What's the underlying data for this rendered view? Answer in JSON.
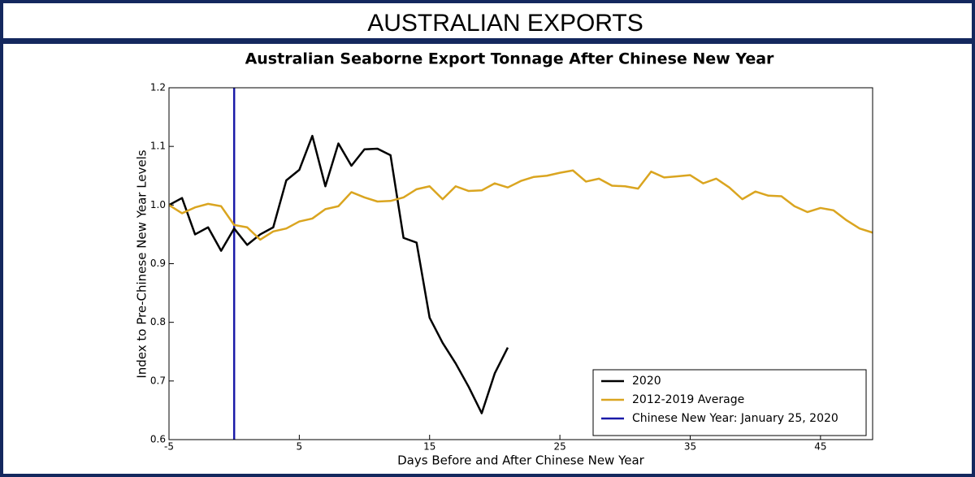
{
  "header": {
    "title": "AUSTRALIAN EXPORTS"
  },
  "chart_data": {
    "type": "line",
    "title": "Australian Seaborne Export Tonnage After Chinese New Year",
    "x_label": "Days Before and After Chinese New Year",
    "y_label": "Index to Pre-Chinese New Year Levels",
    "xlim": [
      -5,
      49
    ],
    "ylim": [
      0.6,
      1.2
    ],
    "xticks": [
      -5,
      5,
      15,
      25,
      35,
      45
    ],
    "yticks": [
      0.6,
      0.7,
      0.8,
      0.9,
      {
        "value": 1,
        "label": "1.0"
      },
      1.1,
      1.2
    ],
    "legend": "lower right",
    "series": [
      {
        "name": "2020",
        "color": "#000000",
        "x": [
          -5,
          -4,
          -3,
          -2,
          -1,
          0,
          1,
          2,
          3,
          4,
          5,
          6,
          7,
          8,
          9,
          10,
          11,
          12,
          13,
          14,
          15,
          16,
          17,
          18,
          19,
          20,
          21
        ],
        "values": [
          1.0,
          1.012,
          0.95,
          0.962,
          0.922,
          0.96,
          0.932,
          0.95,
          0.962,
          1.042,
          1.06,
          1.118,
          1.032,
          1.105,
          1.067,
          1.095,
          1.096,
          1.085,
          0.944,
          0.936,
          0.808,
          0.765,
          0.73,
          0.69,
          0.645,
          0.713,
          0.757
        ]
      },
      {
        "name": "2012-2019 Average",
        "color": "#daa520",
        "x": [
          -5,
          -4,
          -3,
          -2,
          -1,
          0,
          1,
          2,
          3,
          4,
          5,
          6,
          7,
          8,
          9,
          10,
          11,
          12,
          13,
          14,
          15,
          16,
          17,
          18,
          19,
          20,
          21,
          22,
          23,
          24,
          25,
          26,
          27,
          28,
          29,
          30,
          31,
          32,
          33,
          34,
          35,
          36,
          37,
          38,
          39,
          40,
          41,
          42,
          43,
          44,
          45,
          46,
          47,
          48,
          49
        ],
        "values": [
          1.0,
          0.986,
          0.996,
          1.002,
          0.998,
          0.966,
          0.962,
          0.941,
          0.955,
          0.96,
          0.972,
          0.977,
          0.993,
          0.998,
          1.022,
          1.013,
          1.006,
          1.007,
          1.013,
          1.027,
          1.032,
          1.01,
          1.032,
          1.024,
          1.025,
          1.037,
          1.03,
          1.041,
          1.048,
          1.05,
          1.055,
          1.059,
          1.04,
          1.045,
          1.033,
          1.032,
          1.028,
          1.057,
          1.047,
          1.049,
          1.051,
          1.037,
          1.045,
          1.03,
          1.01,
          1.023,
          1.016,
          1.015,
          0.998,
          0.988,
          0.995,
          0.991,
          0.974,
          0.96,
          0.953
        ]
      }
    ],
    "vlines": [
      {
        "name": "Chinese New Year: January 25, 2020",
        "color": "#1a1aa8",
        "x": 0
      }
    ]
  }
}
